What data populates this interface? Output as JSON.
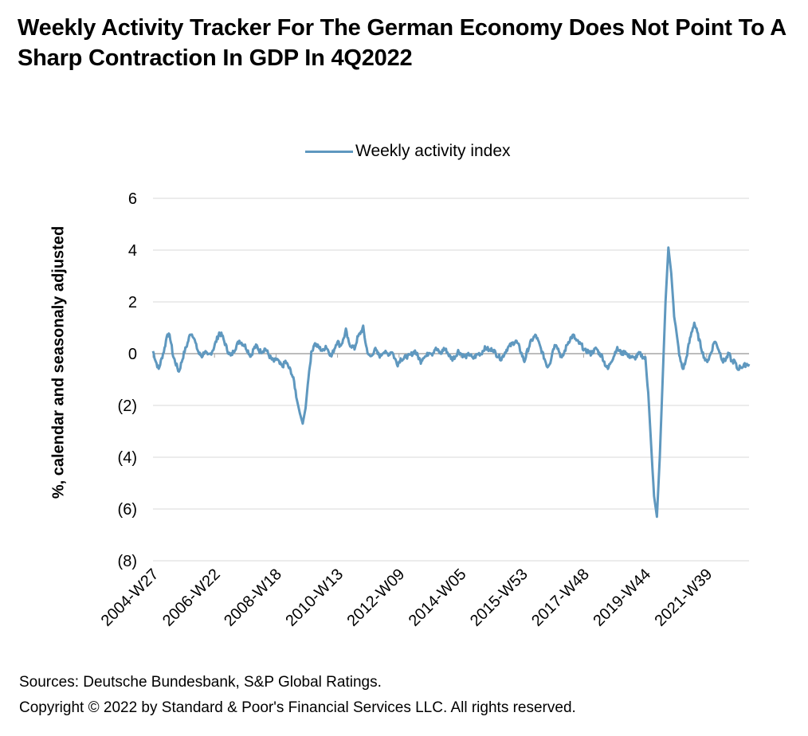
{
  "title": "Weekly Activity Tracker For The German Economy Does Not Point To A Sharp Contraction In GDP In 4Q2022",
  "source_note": "Sources: Deutsche Bundesbank, S&P Global Ratings.",
  "copyright_note": "Copyright © 2022 by Standard & Poor's Financial Services LLC. All rights reserved.",
  "chart_data": {
    "type": "line",
    "title": "Weekly Activity Tracker For The German Economy Does Not Point To A Sharp Contraction In GDP In 4Q2022",
    "xlabel": "",
    "ylabel": "%, calendar and seasonaly adjusted",
    "ylim": [
      -8,
      6
    ],
    "yticks": [
      6,
      4,
      2,
      0,
      -2,
      -4,
      -6,
      -8
    ],
    "ytick_labels": [
      "6",
      "4",
      "2",
      "0",
      "(2)",
      "(4)",
      "(6)",
      "(8)"
    ],
    "xtick_labels": [
      "2004-W27",
      "2006-W22",
      "2008-W18",
      "2010-W13",
      "2012-W09",
      "2014-W05",
      "2015-W53",
      "2017-W48",
      "2019-W44",
      "2021-W39"
    ],
    "grid": true,
    "legend_position": "top-center",
    "colors": {
      "series": "#5f98bf",
      "grid": "#d9d9d9",
      "zero_line": "#a6a6a6"
    },
    "series": [
      {
        "name": "Weekly activity index",
        "x_start": "2004-W27",
        "x_step": "4 weeks (approx.)",
        "values": [
          0.1,
          -0.3,
          -0.6,
          -0.2,
          0.2,
          0.8,
          0.6,
          -0.1,
          -0.4,
          -0.7,
          -0.3,
          0.1,
          0.4,
          0.8,
          0.7,
          0.3,
          0.0,
          -0.1,
          0.1,
          -0.1,
          0.0,
          0.2,
          0.5,
          0.8,
          0.7,
          0.4,
          0.1,
          -0.1,
          0.1,
          0.3,
          0.5,
          0.4,
          0.3,
          0.1,
          -0.1,
          0.2,
          0.3,
          0.1,
          0.1,
          0.2,
          0.0,
          -0.2,
          -0.3,
          -0.2,
          -0.4,
          -0.5,
          -0.3,
          -0.5,
          -0.7,
          -1.1,
          -1.8,
          -2.3,
          -2.7,
          -2.1,
          -0.9,
          0.0,
          0.4,
          0.3,
          0.2,
          0.1,
          0.3,
          0.1,
          -0.1,
          0.2,
          0.5,
          0.3,
          0.5,
          0.9,
          0.4,
          0.3,
          0.2,
          0.6,
          0.8,
          1.0,
          0.3,
          -0.1,
          -0.1,
          0.2,
          0.0,
          -0.1,
          0.1,
          0.0,
          0.0,
          0.1,
          -0.2,
          -0.4,
          -0.2,
          -0.2,
          -0.1,
          -0.1,
          0.0,
          0.1,
          -0.1,
          -0.3,
          -0.1,
          -0.1,
          0.1,
          0.0,
          0.2,
          0.1,
          0.0,
          0.2,
          0.1,
          -0.1,
          -0.2,
          -0.1,
          0.1,
          0.0,
          -0.1,
          -0.1,
          0.0,
          -0.2,
          -0.1,
          0.0,
          0.0,
          0.2,
          0.2,
          0.1,
          0.2,
          0.0,
          -0.1,
          -0.2,
          0.0,
          0.2,
          0.3,
          0.4,
          0.5,
          0.3,
          0.0,
          -0.3,
          0.1,
          0.4,
          0.6,
          0.7,
          0.4,
          0.1,
          -0.2,
          -0.5,
          -0.3,
          0.2,
          0.4,
          0.1,
          -0.2,
          0.1,
          0.4,
          0.6,
          0.7,
          0.5,
          0.4,
          0.3,
          0.1,
          0.1,
          0.0,
          0.1,
          0.2,
          0.0,
          -0.1,
          -0.4,
          -0.6,
          -0.3,
          -0.1,
          0.2,
          0.1,
          0.0,
          0.1,
          -0.1,
          -0.1,
          -0.2,
          -0.1,
          0.0,
          -0.1,
          -0.2,
          -1.5,
          -3.5,
          -5.5,
          -6.3,
          -4.0,
          -1.0,
          2.0,
          4.1,
          3.1,
          1.5,
          0.6,
          -0.2,
          -0.6,
          -0.3,
          0.3,
          0.8,
          1.2,
          0.8,
          0.4,
          0.0,
          -0.3,
          -0.2,
          0.1,
          0.5,
          0.3,
          0.0,
          -0.3,
          -0.2,
          0.0,
          -0.3,
          -0.3,
          -0.6,
          -0.5,
          -0.5,
          -0.4,
          -0.4
        ]
      }
    ]
  }
}
